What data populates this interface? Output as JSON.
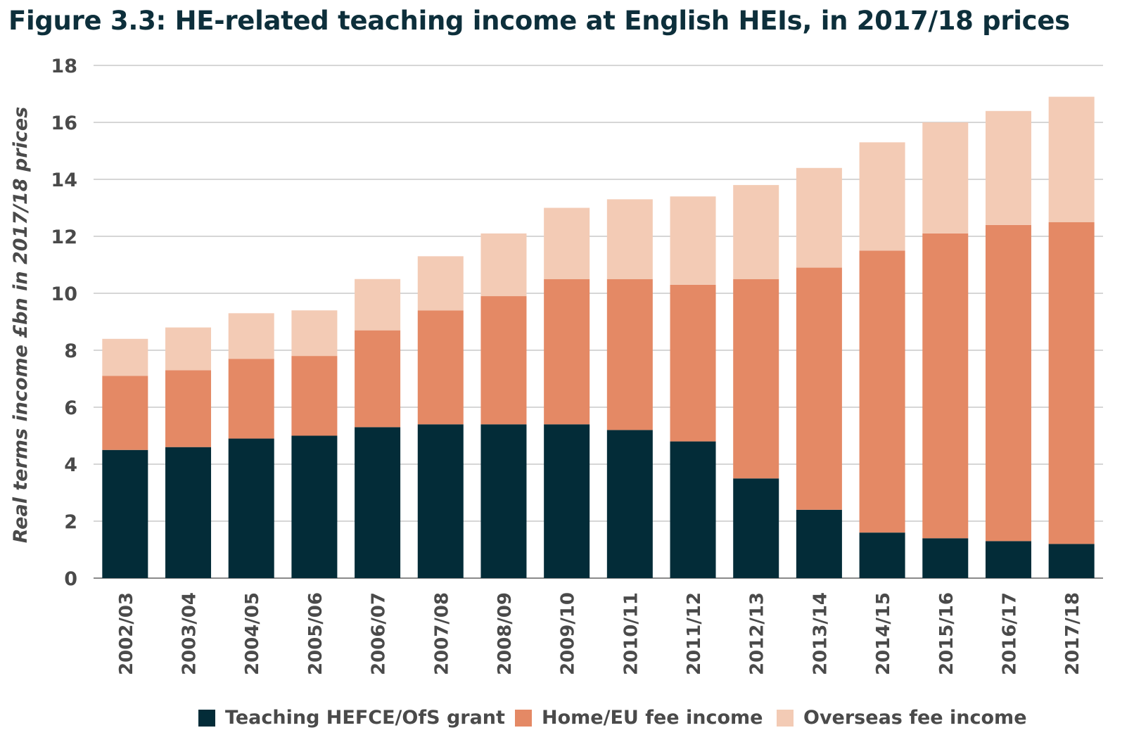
{
  "title": "Figure 3.3: HE-related teaching income at English HEIs, in 2017/18 prices",
  "colors": {
    "grant": "#032c38",
    "home_eu": "#e48965",
    "overseas": "#f3cbb5",
    "gridline": "#bdbdbd",
    "axis_text": "#4a4a4a"
  },
  "chart_data": {
    "type": "bar",
    "stacked": true,
    "title": "Figure 3.3: HE-related teaching income at English HEIs, in 2017/18 prices",
    "xlabel": "",
    "ylabel": "Real terms income £bn in 2017/18 prices",
    "ylim": [
      0,
      18
    ],
    "yticks": [
      0,
      2,
      4,
      6,
      8,
      10,
      12,
      14,
      16,
      18
    ],
    "grid": true,
    "legend_position": "bottom",
    "categories": [
      "2002/03",
      "2003/04",
      "2004/05",
      "2005/06",
      "2006/07",
      "2007/08",
      "2008/09",
      "2009/10",
      "2010/11",
      "2011/12",
      "2012/13",
      "2013/14",
      "2014/15",
      "2015/16",
      "2016/17",
      "2017/18"
    ],
    "series": [
      {
        "name": "Teaching HEFCE/OfS grant",
        "color": "#032c38",
        "values": [
          4.5,
          4.6,
          4.9,
          5.0,
          5.3,
          5.4,
          5.4,
          5.4,
          5.2,
          4.8,
          3.5,
          2.4,
          1.6,
          1.4,
          1.3,
          1.2
        ]
      },
      {
        "name": "Home/EU fee income",
        "color": "#e48965",
        "values": [
          2.6,
          2.7,
          2.8,
          2.8,
          3.4,
          4.0,
          4.5,
          5.1,
          5.3,
          5.5,
          7.0,
          8.5,
          9.9,
          10.7,
          11.1,
          11.3
        ]
      },
      {
        "name": "Overseas fee income",
        "color": "#f3cbb5",
        "values": [
          1.3,
          1.5,
          1.6,
          1.6,
          1.8,
          1.9,
          2.2,
          2.5,
          2.8,
          3.1,
          3.3,
          3.5,
          3.8,
          3.9,
          4.0,
          4.4
        ]
      }
    ]
  }
}
